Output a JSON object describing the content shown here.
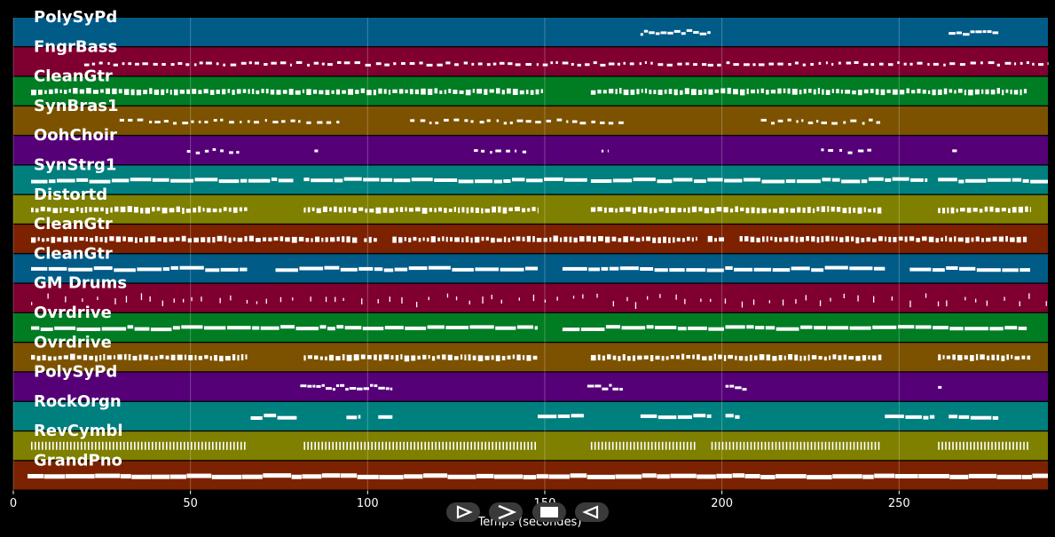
{
  "xaxis": {
    "label": "Temps (secondes)",
    "ticks": [
      0,
      50,
      100,
      150,
      200,
      250
    ],
    "range": [
      0,
      292
    ]
  },
  "colors": {
    "background": "#000000",
    "grid": "#ffffff",
    "notes": "#ffffff",
    "track_palette": [
      "#005b87",
      "#7f0030",
      "#007c23",
      "#7c5200",
      "#560078",
      "#007f7f",
      "#7f7f00",
      "#7c2200"
    ]
  },
  "controls": {
    "icons": [
      "play-icon",
      "forward-icon",
      "stop-icon",
      "rewind-icon"
    ]
  },
  "tracks": [
    {
      "name": "PolySyPd",
      "color": "#005b87",
      "spans": [
        [
          177,
          197
        ],
        [
          264,
          278
        ]
      ],
      "style": "sparse"
    },
    {
      "name": "FngrBass",
      "color": "#7f0030",
      "spans": [
        [
          20,
          196
        ],
        [
          196,
          292
        ]
      ],
      "style": "bass"
    },
    {
      "name": "CleanGtr",
      "color": "#007c23",
      "spans": [
        [
          5,
          150
        ],
        [
          163,
          286
        ]
      ],
      "style": "dense"
    },
    {
      "name": "SynBras1",
      "color": "#7c5200",
      "spans": [
        [
          30,
          92
        ],
        [
          112,
          173
        ],
        [
          211,
          245
        ]
      ],
      "style": "dots"
    },
    {
      "name": "OohChoir",
      "color": "#560078",
      "spans": [
        [
          49,
          64
        ],
        [
          85,
          86
        ],
        [
          130,
          146
        ],
        [
          166,
          168
        ],
        [
          228,
          243
        ],
        [
          265,
          267
        ]
      ],
      "style": "dots"
    },
    {
      "name": "SynStrg1",
      "color": "#007f7f",
      "spans": [
        [
          5,
          79
        ],
        [
          82,
          162
        ],
        [
          163,
          258
        ],
        [
          261,
          292
        ]
      ],
      "style": "solid"
    },
    {
      "name": "Distortd",
      "color": "#7f7f00",
      "spans": [
        [
          5,
          66
        ],
        [
          82,
          148
        ],
        [
          163,
          245
        ],
        [
          261,
          287
        ]
      ],
      "style": "dense"
    },
    {
      "name": "CleanGtr",
      "color": "#7c2200",
      "spans": [
        [
          5,
          97
        ],
        [
          99,
          103
        ],
        [
          107,
          193
        ],
        [
          196,
          201
        ],
        [
          205,
          286
        ]
      ],
      "style": "dense"
    },
    {
      "name": "CleanGtr",
      "color": "#005b87",
      "spans": [
        [
          5,
          66
        ],
        [
          74,
          148
        ],
        [
          155,
          246
        ],
        [
          253,
          287
        ]
      ],
      "style": "solid"
    },
    {
      "name": "GM Drums",
      "color": "#7f0030",
      "spans": [
        [
          5,
          292
        ]
      ],
      "style": "drums"
    },
    {
      "name": "Ovrdrive",
      "color": "#007c23",
      "spans": [
        [
          5,
          148
        ],
        [
          155,
          286
        ]
      ],
      "style": "solid"
    },
    {
      "name": "Ovrdrive",
      "color": "#7c5200",
      "spans": [
        [
          5,
          66
        ],
        [
          82,
          148
        ],
        [
          163,
          245
        ],
        [
          261,
          287
        ]
      ],
      "style": "dense"
    },
    {
      "name": "PolySyPd",
      "color": "#560078",
      "spans": [
        [
          81,
          107
        ],
        [
          162,
          172
        ],
        [
          201,
          207
        ],
        [
          261,
          262
        ]
      ],
      "style": "sparse"
    },
    {
      "name": "RockOrgn",
      "color": "#007f7f",
      "spans": [
        [
          67,
          80
        ],
        [
          94,
          98
        ],
        [
          103,
          107
        ],
        [
          148,
          161
        ],
        [
          177,
          197
        ],
        [
          201,
          205
        ],
        [
          246,
          260
        ],
        [
          264,
          278
        ]
      ],
      "style": "solid"
    },
    {
      "name": "RevCymbl",
      "color": "#7f7f00",
      "spans": [
        [
          5,
          66
        ],
        [
          82,
          148
        ],
        [
          163,
          193
        ],
        [
          197,
          245
        ],
        [
          261,
          287
        ]
      ],
      "style": "cymbal"
    },
    {
      "name": "GrandPno",
      "color": "#7c2200",
      "spans": [
        [
          4,
          292
        ]
      ],
      "style": "piano"
    }
  ]
}
